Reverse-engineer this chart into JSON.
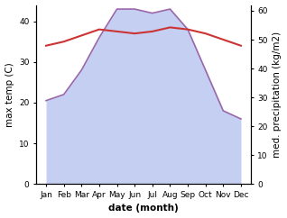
{
  "months": [
    "Jan",
    "Feb",
    "Mar",
    "Apr",
    "May",
    "Jun",
    "Jul",
    "Aug",
    "Sep",
    "Oct",
    "Nov",
    "Dec"
  ],
  "max_temp": [
    34.0,
    35.0,
    36.5,
    38.0,
    37.5,
    37.0,
    37.5,
    38.5,
    38.0,
    37.0,
    35.5,
    34.0
  ],
  "precipitation": [
    20.5,
    22.0,
    28.0,
    36.0,
    43.0,
    43.0,
    42.0,
    43.0,
    38.0,
    28.0,
    18.0,
    16.0
  ],
  "temp_color": "#cc3333",
  "precip_line_color": "#9966aa",
  "fill_color": "#b0c0ee",
  "fill_alpha": 0.75,
  "ylabel_left": "max temp (C)",
  "ylabel_right": "med. precipitation (kg/m2)",
  "xlabel": "date (month)",
  "ylim_left": [
    0,
    44
  ],
  "ylim_right": [
    0,
    62
  ],
  "yticks_left": [
    0,
    10,
    20,
    30,
    40
  ],
  "yticks_right": [
    0,
    10,
    20,
    30,
    40,
    50,
    60
  ],
  "label_fontsize": 7.5,
  "tick_fontsize": 6.5
}
